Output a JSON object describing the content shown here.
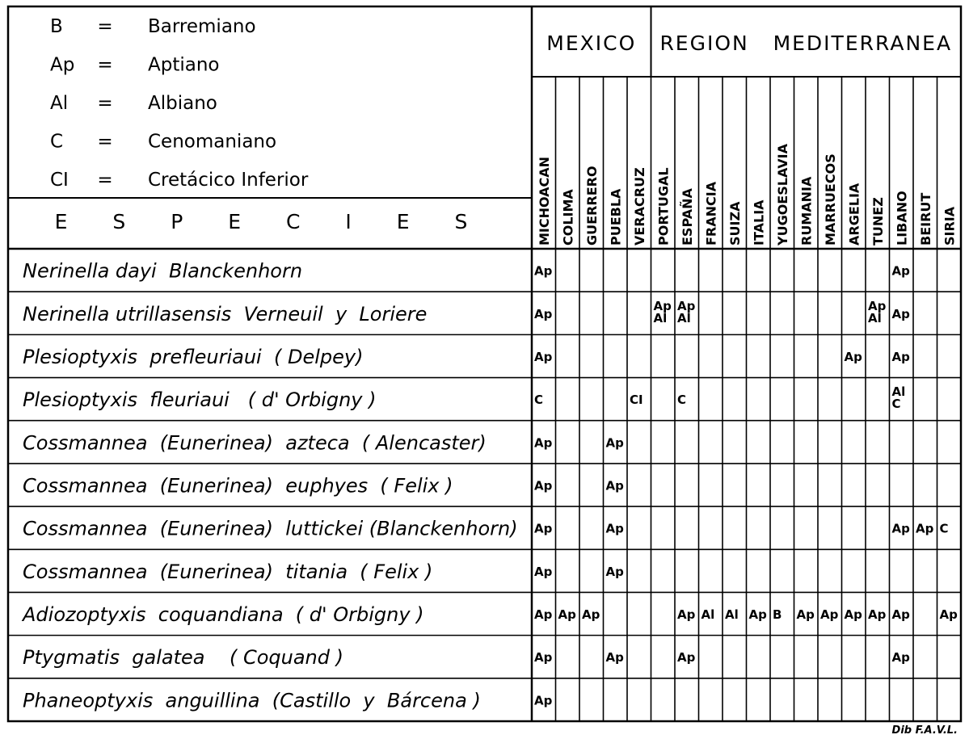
{
  "legend": [
    {
      "code": "B",
      "eq": "=",
      "meaning": "Barremiano"
    },
    {
      "code": "Ap",
      "eq": "=",
      "meaning": "Aptiano"
    },
    {
      "code": "Al",
      "eq": "=",
      "meaning": "Albiano"
    },
    {
      "code": "C",
      "eq": "=",
      "meaning": "Cenomaniano"
    },
    {
      "code": "CI",
      "eq": "=",
      "meaning": "Cretácico Inferior"
    }
  ],
  "especies_header": "E S P E C I E S",
  "regions": [
    {
      "label": "MEXICO"
    },
    {
      "label": "REGION   MEDITERRANEA"
    }
  ],
  "countries": [
    "MICHOACAN",
    "COLIMA",
    "GUERRERO",
    "PUEBLA",
    "VERACRUZ",
    "PORTUGAL",
    "ESPAÑA",
    "FRANCIA",
    "SUIZA",
    "ITALIA",
    "YUGOESLAVIA",
    "RUMANIA",
    "MARRUECOS",
    "ARGELIA",
    "TUNEZ",
    "LIBANO",
    "BEIRUT",
    "SIRIA"
  ],
  "species": [
    {
      "name": "Nerinella dayi  Blanckenhorn",
      "cells": {
        "0": [
          "Ap"
        ],
        "15": [
          "Ap"
        ]
      }
    },
    {
      "name": "Nerinella utrillasensis  Verneuil  y  Loriere",
      "cells": {
        "0": [
          "Ap"
        ],
        "5": [
          "Ap",
          "Al"
        ],
        "6": [
          "Ap",
          "Al"
        ],
        "14": [
          "Ap",
          "Al"
        ],
        "15": [
          "Ap"
        ]
      }
    },
    {
      "name": "Plesioptyxis  prefleuriaui  ( Delpey)",
      "cells": {
        "0": [
          "Ap"
        ],
        "13": [
          "Ap"
        ],
        "15": [
          "Ap"
        ]
      }
    },
    {
      "name": "Plesioptyxis  fleuriaui   ( d' Orbigny )",
      "cells": {
        "0": [
          "C"
        ],
        "4": [
          "CI"
        ],
        "6": [
          "C"
        ],
        "15": [
          "Al",
          "C"
        ]
      }
    },
    {
      "name": "Cossmannea  (Eunerinea)  azteca  ( Alencaster)",
      "cells": {
        "0": [
          "Ap"
        ],
        "3": [
          "Ap"
        ]
      }
    },
    {
      "name": "Cossmannea  (Eunerinea)  euphyes  ( Felix )",
      "cells": {
        "0": [
          "Ap"
        ],
        "3": [
          "Ap"
        ]
      }
    },
    {
      "name": "Cossmannea  (Eunerinea)  luttickei (Blanckenhorn)",
      "cells": {
        "0": [
          "Ap"
        ],
        "3": [
          "Ap"
        ],
        "15": [
          "Ap"
        ],
        "16": [
          "Ap"
        ],
        "17": [
          "C"
        ]
      }
    },
    {
      "name": "Cossmannea  (Eunerinea)  titania  ( Felix )",
      "cells": {
        "0": [
          "Ap"
        ],
        "3": [
          "Ap"
        ]
      }
    },
    {
      "name": "Adiozoptyxis  coquandiana  ( d' Orbigny )",
      "cells": {
        "0": [
          "Ap"
        ],
        "1": [
          "Ap"
        ],
        "2": [
          "Ap"
        ],
        "6": [
          "Ap"
        ],
        "7": [
          "Al"
        ],
        "8": [
          "Al"
        ],
        "9": [
          "Ap"
        ],
        "10": [
          "B"
        ],
        "11": [
          "Ap"
        ],
        "12": [
          "Ap"
        ],
        "13": [
          "Ap"
        ],
        "14": [
          "Ap"
        ],
        "15": [
          "Ap"
        ],
        "17": [
          "Ap"
        ]
      }
    },
    {
      "name": "Ptygmatis  galatea    ( Coquand )",
      "cells": {
        "0": [
          "Ap"
        ],
        "3": [
          "Ap"
        ],
        "6": [
          "Ap"
        ],
        "15": [
          "Ap"
        ]
      }
    },
    {
      "name": "Phaneoptyxis  anguillina  (Castillo  y  Bárcena )",
      "cells": {
        "0": [
          "Ap"
        ]
      }
    }
  ],
  "credit": "Dib F.A.V.L."
}
